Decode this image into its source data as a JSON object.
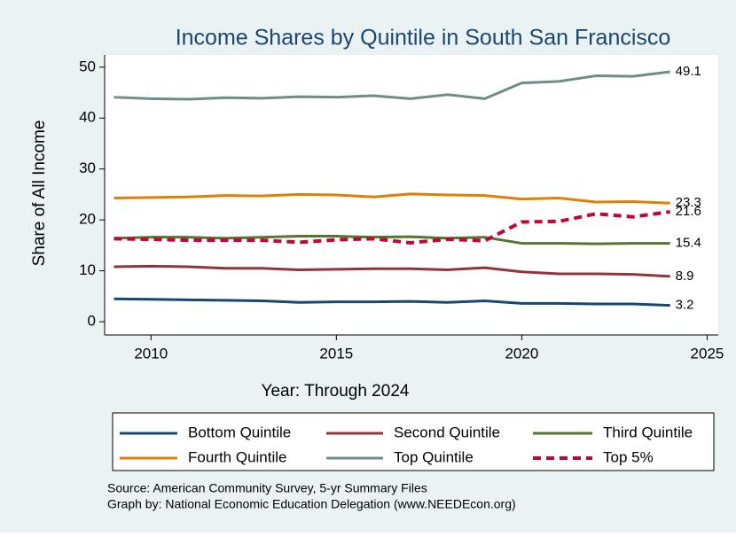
{
  "chart_data": {
    "type": "line",
    "title": "Income Shares by Quintile in South San Francisco",
    "x_label": "Year: Through 2024",
    "y_label": "Share of All Income",
    "x": [
      2009,
      2010,
      2011,
      2012,
      2013,
      2014,
      2015,
      2016,
      2017,
      2018,
      2019,
      2020,
      2021,
      2022,
      2023,
      2024
    ],
    "series": [
      {
        "name": "Bottom Quintile",
        "color": "#1a476f",
        "style": "solid",
        "values": [
          4.5,
          4.4,
          4.3,
          4.2,
          4.1,
          3.8,
          3.9,
          3.9,
          4.0,
          3.8,
          4.1,
          3.6,
          3.6,
          3.5,
          3.5,
          3.2
        ]
      },
      {
        "name": "Second Quintile",
        "color": "#90353b",
        "style": "solid",
        "values": [
          10.8,
          10.9,
          10.8,
          10.5,
          10.5,
          10.2,
          10.3,
          10.4,
          10.4,
          10.2,
          10.6,
          9.8,
          9.4,
          9.4,
          9.3,
          8.9
        ]
      },
      {
        "name": "Third Quintile",
        "color": "#55752f",
        "style": "solid",
        "values": [
          16.4,
          16.6,
          16.6,
          16.4,
          16.6,
          16.8,
          16.8,
          16.6,
          16.7,
          16.4,
          16.6,
          15.4,
          15.4,
          15.3,
          15.4,
          15.4
        ]
      },
      {
        "name": "Fourth Quintile",
        "color": "#e37e00",
        "style": "solid",
        "values": [
          24.3,
          24.4,
          24.5,
          24.8,
          24.7,
          25.0,
          24.9,
          24.5,
          25.1,
          24.9,
          24.8,
          24.1,
          24.3,
          23.5,
          23.6,
          23.3
        ]
      },
      {
        "name": "Top Quintile",
        "color": "#6e8e84",
        "style": "solid",
        "values": [
          44.1,
          43.8,
          43.7,
          44.0,
          43.9,
          44.2,
          44.1,
          44.4,
          43.8,
          44.6,
          43.8,
          46.9,
          47.2,
          48.3,
          48.2,
          49.1
        ]
      },
      {
        "name": "Top 5%",
        "color": "#c10534",
        "style": "dashed",
        "values": [
          16.3,
          16.2,
          16.0,
          16.0,
          16.0,
          15.6,
          16.1,
          16.3,
          15.5,
          16.2,
          15.9,
          19.6,
          19.7,
          21.2,
          20.6,
          21.6
        ]
      }
    ],
    "xlim": [
      2008.75,
      2025.3
    ],
    "xticks": [
      2010,
      2015,
      2020,
      2025
    ],
    "ylim": [
      -2.6,
      52.4
    ],
    "yticks": [
      0,
      10,
      20,
      30,
      40,
      50
    ],
    "end_labels": true,
    "grid": false,
    "legend": "bottom",
    "notes": [
      "Source: American Community Survey, 5-yr Summary Files",
      "Graph by: National Economic Education Delegation (www.NEEDEcon.org)"
    ]
  }
}
